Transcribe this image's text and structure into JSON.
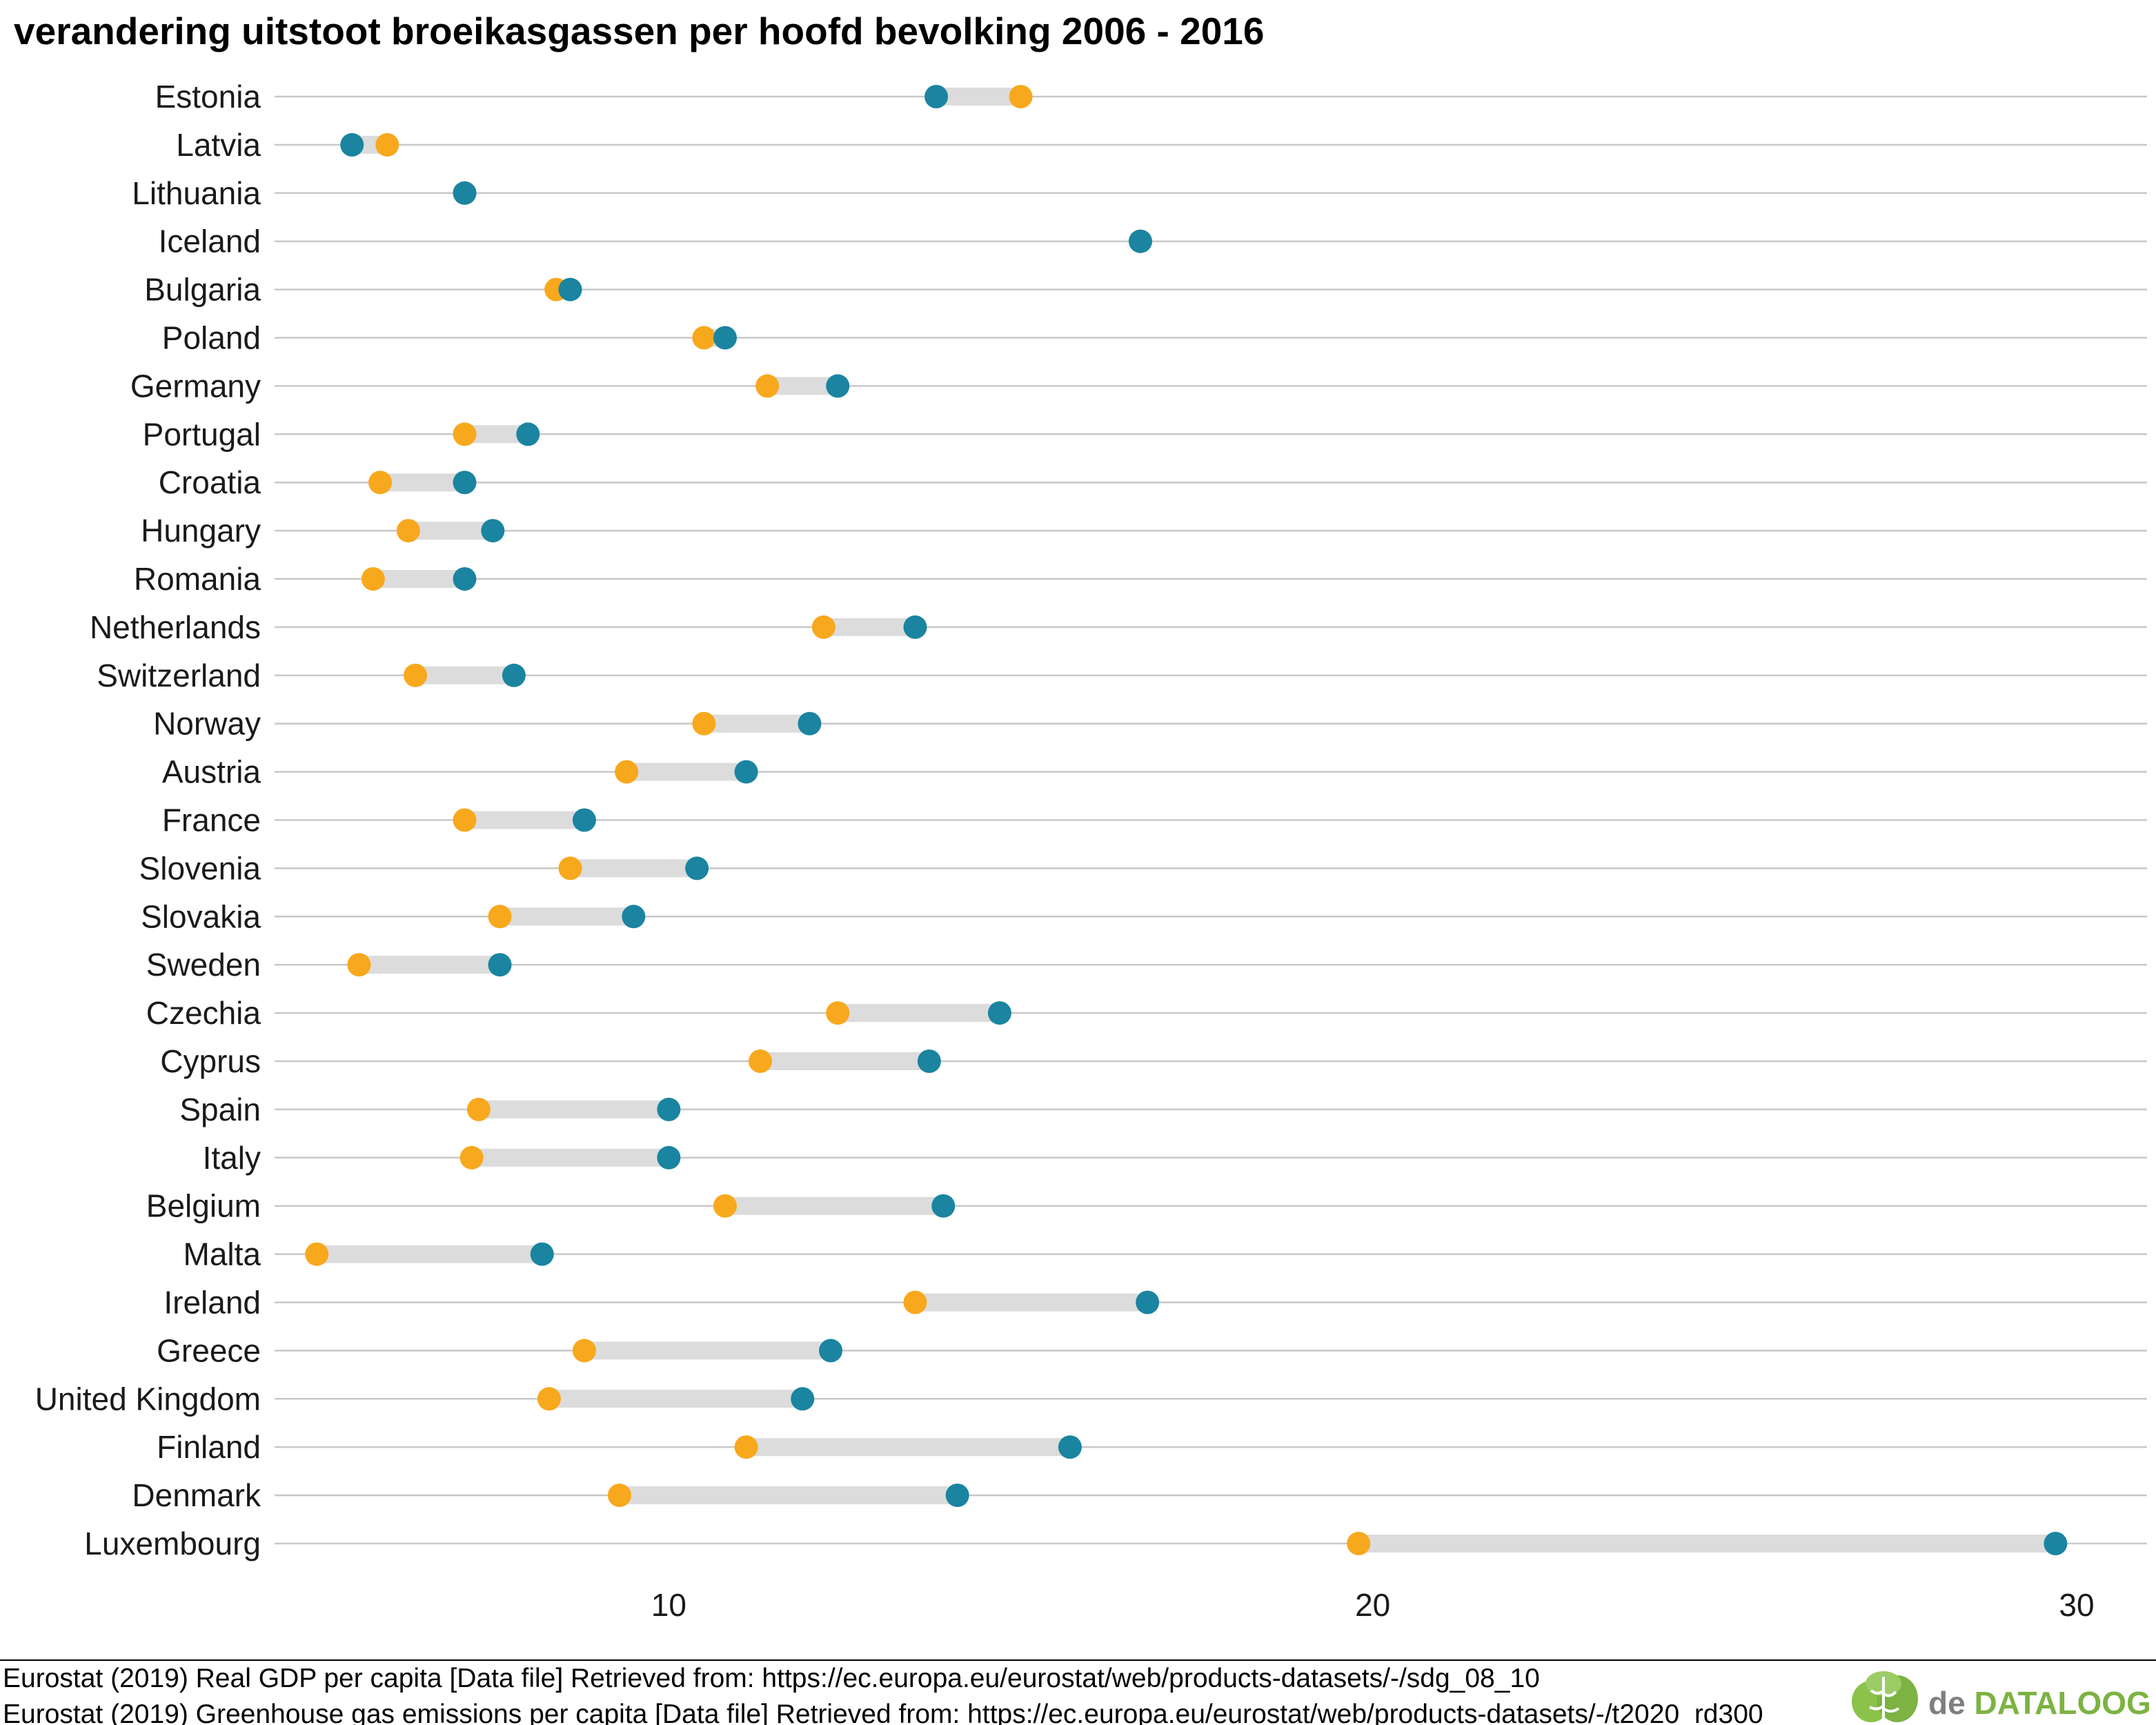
{
  "colors": {
    "year_2006": "#1A84A1",
    "year_2016": "#F8A81C",
    "segment": "#DCDCDC",
    "gridline": "#C8C8C8",
    "brand_green": "#7CB342",
    "brand_grey": "#7F7F7F"
  },
  "chart_data": {
    "type": "dumbbell",
    "title": "verandering uitstoot broeikasgassen per hoofd bevolking 2006 - 2016",
    "xlabel": "",
    "ylabel": "",
    "xlim": [
      4.4,
      31
    ],
    "xticks": [
      10,
      20,
      30
    ],
    "grid": true,
    "legend": "none",
    "categories": [
      "Estonia",
      "Latvia",
      "Lithuania",
      "Iceland",
      "Bulgaria",
      "Poland",
      "Germany",
      "Portugal",
      "Croatia",
      "Hungary",
      "Romania",
      "Netherlands",
      "Switzerland",
      "Norway",
      "Austria",
      "France",
      "Slovenia",
      "Slovakia",
      "Sweden",
      "Czechia",
      "Cyprus",
      "Spain",
      "Italy",
      "Belgium",
      "Malta",
      "Ireland",
      "Greece",
      "United Kingdom",
      "Finland",
      "Denmark",
      "Luxembourg"
    ],
    "series": [
      {
        "color_key": "year_2006",
        "values": [
          13.8,
          5.5,
          7.1,
          16.7,
          8.6,
          10.8,
          12.4,
          8.0,
          7.1,
          7.5,
          7.1,
          13.5,
          7.8,
          12.0,
          11.1,
          8.8,
          10.4,
          9.5,
          7.6,
          14.7,
          13.7,
          10.0,
          10.0,
          13.9,
          8.2,
          16.8,
          12.3,
          11.9,
          15.7,
          14.1,
          29.7
        ]
      },
      {
        "color_key": "year_2016",
        "values": [
          15.0,
          6.0,
          7.1,
          16.7,
          8.4,
          10.5,
          11.4,
          7.1,
          5.9,
          6.3,
          5.8,
          12.2,
          6.4,
          10.5,
          9.4,
          7.1,
          8.6,
          7.6,
          5.6,
          12.4,
          11.3,
          7.3,
          7.2,
          10.8,
          5.0,
          13.5,
          8.8,
          8.3,
          11.1,
          9.3,
          19.8
        ]
      }
    ]
  },
  "footer": {
    "source_1": "Eurostat (2019) Real GDP per capita [Data file] Retrieved from: https://ec.europa.eu/eurostat/web/products-datasets/-/sdg_08_10",
    "source_2": "Eurostat (2019) Greenhouse gas emissions per capita [Data file] Retrieved from: https://ec.europa.eu/eurostat/web/products-datasets/-/t2020_rd300"
  },
  "brand": {
    "prefix": "de ",
    "name": "DATALOOG",
    "icon": "brain-icon"
  }
}
